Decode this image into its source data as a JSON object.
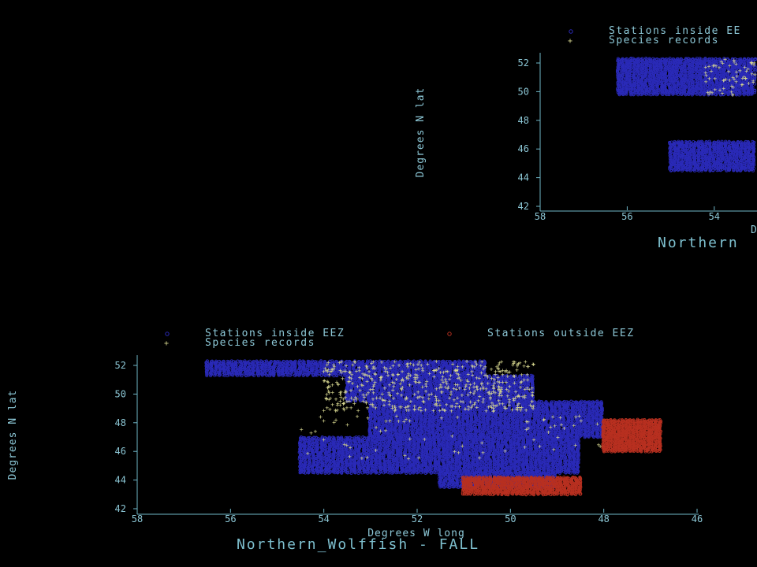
{
  "chart_data": [
    {
      "type": "scatter",
      "title": "Northern_Wolffish - FALL",
      "xlabel": "Degrees W long",
      "ylabel": "Degrees N lat",
      "xlim": [
        58,
        46
      ],
      "ylim": [
        42,
        52
      ],
      "xticks": [
        "58",
        "56",
        "54",
        "52",
        "50",
        "48",
        "46"
      ],
      "yticks": [
        "42",
        "44",
        "46",
        "48",
        "50",
        "52"
      ],
      "legend": [
        {
          "name": "Stations inside EEZ",
          "marker": "o",
          "color": "#2a2ab8"
        },
        {
          "name": "Stations outside EEZ",
          "marker": "o",
          "color": "#b83020"
        },
        {
          "name": "Species records",
          "marker": "+",
          "color": "#d8d890"
        }
      ],
      "regions": {
        "stations_inside_eez": [
          {
            "lon": [
              56.5,
              50.5
            ],
            "lat": [
              51.3,
              52.3
            ]
          },
          {
            "lon": [
              53.5,
              49.5
            ],
            "lat": [
              49.5,
              51.3
            ]
          },
          {
            "lon": [
              53.0,
              48.0
            ],
            "lat": [
              47.0,
              49.5
            ]
          },
          {
            "lon": [
              54.5,
              48.5
            ],
            "lat": [
              44.5,
              47.0
            ]
          },
          {
            "lon": [
              51.5,
              49.0
            ],
            "lat": [
              43.5,
              44.5
            ]
          }
        ],
        "stations_outside_eez": [
          {
            "lon": [
              51.0,
              48.5
            ],
            "lat": [
              43.0,
              44.2
            ]
          },
          {
            "lon": [
              48.0,
              46.8
            ],
            "lat": [
              46.0,
              48.2
            ]
          }
        ],
        "species_records": [
          {
            "lon": [
              54.0,
              49.5
            ],
            "lat": [
              48.8,
              52.3
            ],
            "density": "high"
          },
          {
            "lon": [
              54.5,
              48.0
            ],
            "lat": [
              45.5,
              48.5
            ],
            "density": "sparse"
          }
        ]
      }
    },
    {
      "type": "scatter",
      "title": "Northern",
      "xlabel": "D",
      "ylabel": "Degrees N lat",
      "xlim": [
        58,
        53
      ],
      "ylim": [
        42,
        52
      ],
      "xticks": [
        "58",
        "56",
        "54"
      ],
      "yticks": [
        "42",
        "44",
        "46",
        "48",
        "50",
        "52"
      ],
      "legend": [
        {
          "name": "Stations inside EE",
          "marker": "o",
          "color": "#2a2ab8"
        },
        {
          "name": "Species records",
          "marker": "+",
          "color": "#d8d890"
        }
      ]
    }
  ],
  "colors": {
    "axis": "#6fb7c7",
    "text": "#8cc7d6",
    "inside": "#2a2ab8",
    "outside": "#b83020",
    "records": "#d8d890"
  }
}
